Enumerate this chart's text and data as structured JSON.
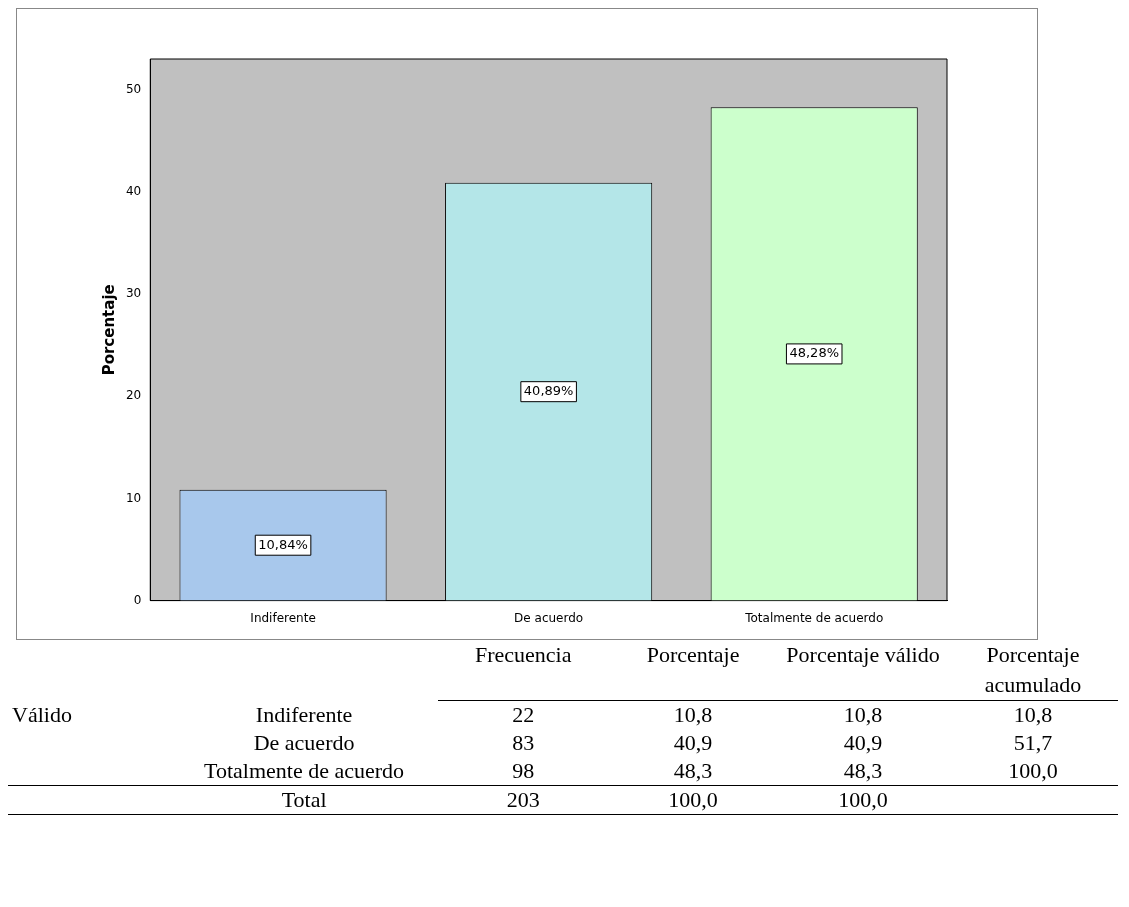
{
  "chart_data": [
    {
      "type": "bar",
      "ylabel": "Porcentaje",
      "categories": [
        "Indiferente",
        "De acuerdo",
        "Totalmente de acuerdo"
      ],
      "values": [
        10.84,
        40.89,
        48.28
      ],
      "colors": [
        "#a8c8ec",
        "#b4e6e8",
        "#ccffcc"
      ],
      "value_labels": [
        "10,84%",
        "40,89%",
        "48,28%"
      ],
      "ylim": [
        0,
        53
      ],
      "yticks": [
        0,
        10,
        20,
        30,
        40,
        50
      ],
      "grid": false,
      "legend": false
    },
    {
      "type": "other",
      "annotations": [
        "Válido"
      ],
      "categories": [
        "Frecuencia",
        "Porcentaje",
        "Porcentaje válido",
        "Porcentaje acumulado"
      ],
      "y_categories": [
        "Indiferente",
        "De acuerdo",
        "Totalmente de acuerdo",
        "Total"
      ],
      "cell_labels": [
        [
          "22",
          "10,8",
          "10,8",
          "10,8"
        ],
        [
          "83",
          "40,9",
          "40,9",
          "51,7"
        ],
        [
          "98",
          "48,3",
          "48,3",
          "100,0"
        ],
        [
          "203",
          "100,0",
          "100,0",
          null
        ]
      ]
    }
  ]
}
